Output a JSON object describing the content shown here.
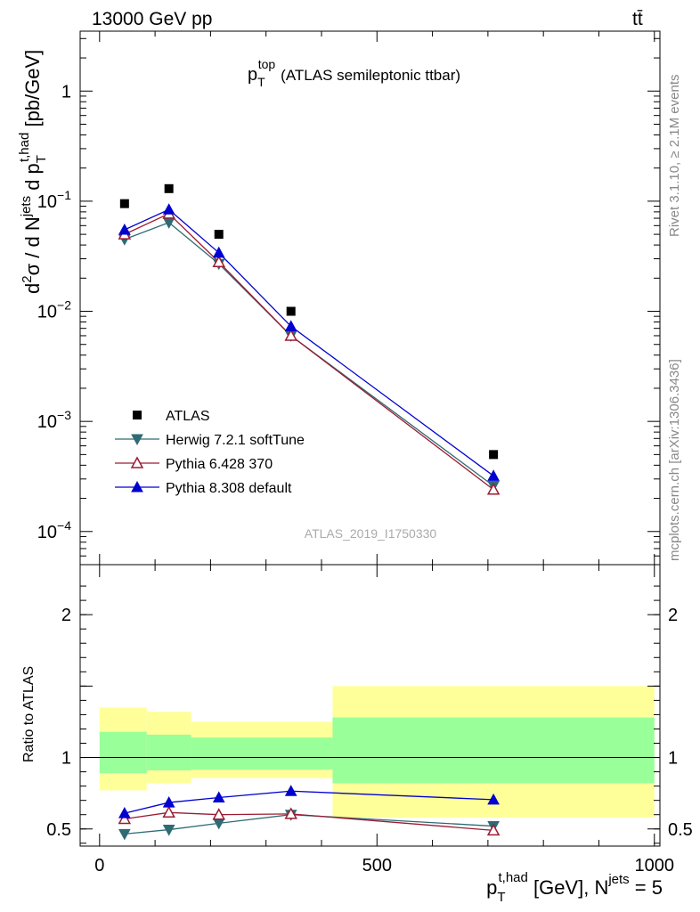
{
  "header": {
    "energy_label": "13000 GeV pp",
    "process_label": "tt̄"
  },
  "side_text": {
    "rivet": "Rivet 3.1.10, ≥ 2.1M events",
    "mcplots": "mcplots.cern.ch [arXiv:1306.3436]"
  },
  "chart_data": [
    {
      "type": "scatter",
      "title": "p_T^top (ATLAS semileptonic ttbar)",
      "title_main": "p",
      "title_sub": "T",
      "title_sup": "top",
      "title_rest": "(ATLAS semileptonic ttbar)",
      "ylabel": "d²σ / d N^jets d p_T^t,had [pb/GeV]",
      "yscale": "log",
      "ylim": [
        5e-05,
        3.5
      ],
      "xlim": [
        -35,
        1010
      ],
      "y_ticks": [
        {
          "value": 1,
          "label": "1"
        },
        {
          "value": 0.1,
          "label": "10^-1",
          "mantissa": "10",
          "exp": "−1"
        },
        {
          "value": 0.01,
          "label": "10^-2",
          "mantissa": "10",
          "exp": "−2"
        },
        {
          "value": 0.001,
          "label": "10^-3",
          "mantissa": "10",
          "exp": "−3"
        },
        {
          "value": 0.0001,
          "label": "10^-4",
          "mantissa": "10",
          "exp": "−4"
        }
      ],
      "watermark": "ATLAS_2019_I1750330",
      "legend_position": "bottom-left",
      "x": [
        45,
        125,
        215,
        345,
        710
      ],
      "series": [
        {
          "name": "ATLAS",
          "color": "#000000",
          "marker": "square",
          "values": [
            0.095,
            0.13,
            0.05,
            0.01,
            0.0005
          ]
        },
        {
          "name": "Herwig 7.2.1 softTune",
          "color": "#2e6b73",
          "marker": "triangle-down",
          "values": [
            0.045,
            0.064,
            0.027,
            0.006,
            0.00026
          ]
        },
        {
          "name": "Pythia 6.428 370",
          "color": "#9b1b33",
          "marker": "triangle-up-open",
          "values": [
            0.05,
            0.077,
            0.028,
            0.006,
            0.00024
          ]
        },
        {
          "name": "Pythia 8.308 default",
          "color": "#0000d0",
          "marker": "triangle-up",
          "values": [
            0.055,
            0.084,
            0.034,
            0.0073,
            0.00032
          ]
        }
      ]
    },
    {
      "type": "line",
      "ylabel": "Ratio to ATLAS",
      "xlabel": "p_T^t,had [GeV], N^jets = 5",
      "ylim": [
        0.38,
        2.35
      ],
      "xlim": [
        -35,
        1010
      ],
      "y_ticks": [
        0.5,
        1,
        2
      ],
      "y_tick_labels": [
        "0.5",
        "1",
        "2"
      ],
      "x_ticks": [
        0,
        500,
        1000
      ],
      "x_tick_labels": [
        "0",
        "500",
        "1000"
      ],
      "bins": [
        {
          "lo": 0,
          "hi": 85,
          "yellow": [
            0.77,
            1.35
          ],
          "green": [
            0.89,
            1.18
          ]
        },
        {
          "lo": 85,
          "hi": 165,
          "yellow": [
            0.82,
            1.32
          ],
          "green": [
            0.91,
            1.16
          ]
        },
        {
          "lo": 165,
          "hi": 420,
          "yellow": [
            0.855,
            1.25
          ],
          "green": [
            0.915,
            1.14
          ]
        },
        {
          "lo": 420,
          "hi": 1000,
          "yellow": [
            0.58,
            1.5
          ],
          "green": [
            0.82,
            1.28
          ]
        }
      ],
      "x": [
        45,
        125,
        215,
        345,
        710
      ],
      "series": [
        {
          "name": "Herwig 7.2.1 softTune",
          "color": "#2e6b73",
          "marker": "triangle-down",
          "values": [
            0.465,
            0.495,
            0.54,
            0.6,
            0.52
          ]
        },
        {
          "name": "Pythia 6.428 370",
          "color": "#9b1b33",
          "marker": "triangle-up-open",
          "values": [
            0.57,
            0.615,
            0.6,
            0.605,
            0.49
          ]
        },
        {
          "name": "Pythia 8.308 default",
          "color": "#0000d0",
          "marker": "triangle-up",
          "values": [
            0.61,
            0.685,
            0.72,
            0.765,
            0.705
          ]
        }
      ]
    }
  ]
}
